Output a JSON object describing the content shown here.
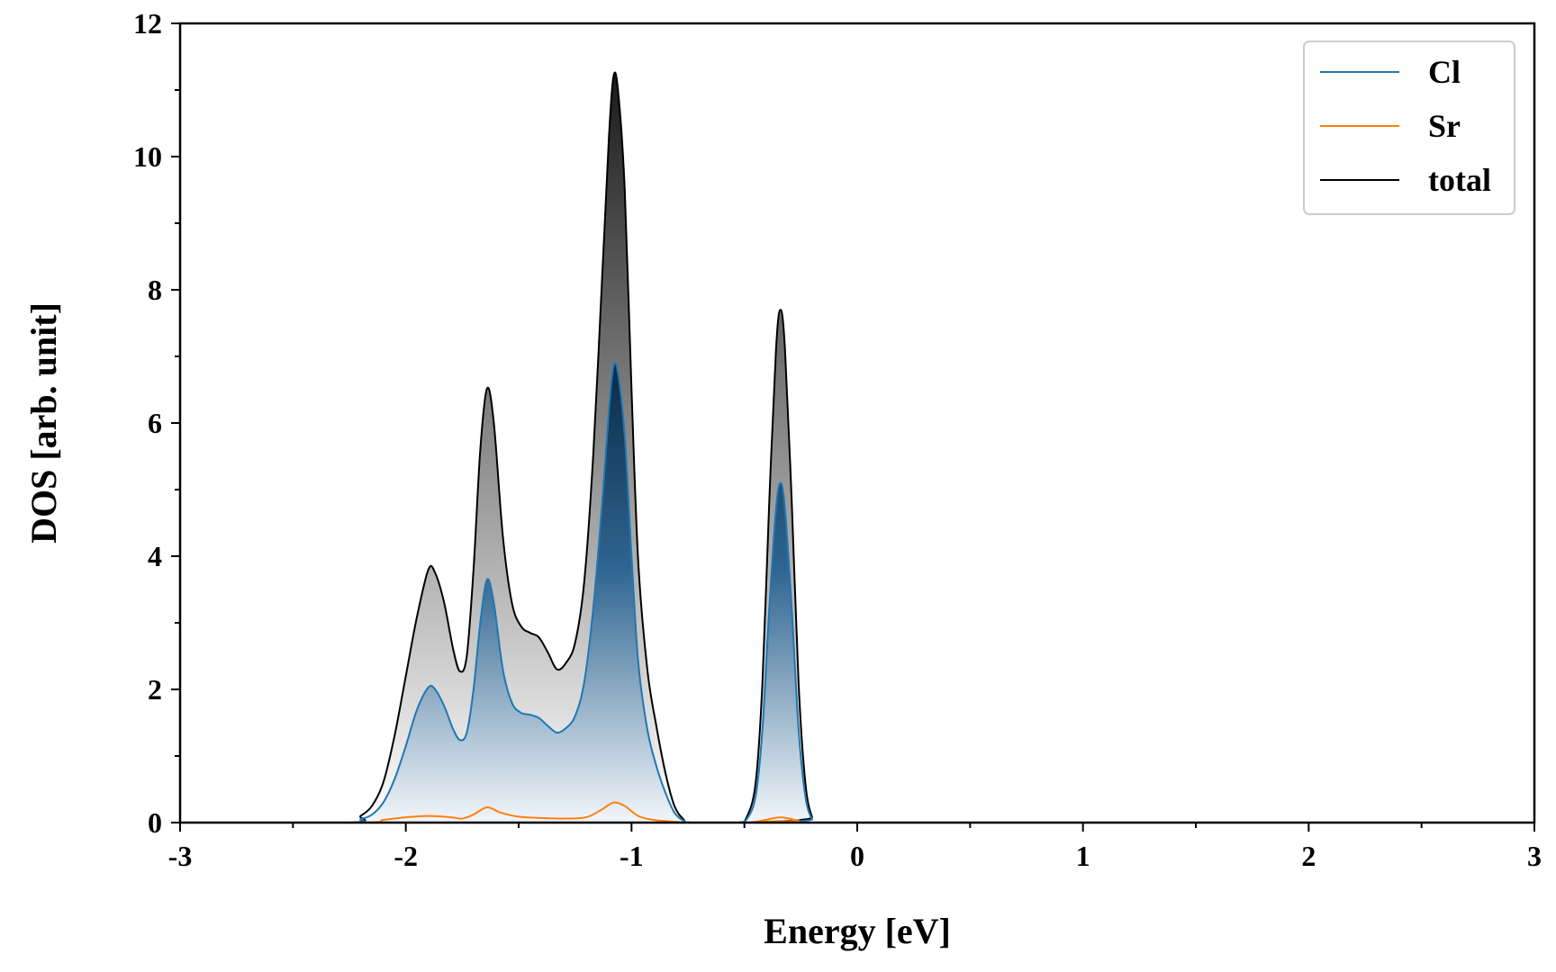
{
  "chart_data": {
    "type": "area",
    "xlabel": "Energy [eV]",
    "ylabel": "DOS [arb. unit]",
    "xlim": [
      -3,
      3
    ],
    "ylim": [
      0,
      12
    ],
    "x_ticks": [
      -3,
      -2,
      -1,
      0,
      1,
      2,
      3
    ],
    "y_ticks": [
      0,
      2,
      4,
      6,
      8,
      10,
      12
    ],
    "grid": false,
    "legend_position": "top-right",
    "series": [
      {
        "name": "Cl",
        "color": "#1f77b4",
        "fill": "gradient-blue",
        "points": [
          [
            -3.0,
            0
          ],
          [
            -2.25,
            0
          ],
          [
            -2.2,
            0.05
          ],
          [
            -2.15,
            0.12
          ],
          [
            -2.1,
            0.3
          ],
          [
            -2.05,
            0.65
          ],
          [
            -2.0,
            1.15
          ],
          [
            -1.95,
            1.7
          ],
          [
            -1.9,
            2.03
          ],
          [
            -1.87,
            2.0
          ],
          [
            -1.83,
            1.75
          ],
          [
            -1.79,
            1.4
          ],
          [
            -1.76,
            1.24
          ],
          [
            -1.73,
            1.35
          ],
          [
            -1.7,
            2.0
          ],
          [
            -1.67,
            3.0
          ],
          [
            -1.64,
            3.65
          ],
          [
            -1.61,
            3.3
          ],
          [
            -1.57,
            2.3
          ],
          [
            -1.53,
            1.8
          ],
          [
            -1.49,
            1.65
          ],
          [
            -1.45,
            1.62
          ],
          [
            -1.41,
            1.57
          ],
          [
            -1.37,
            1.45
          ],
          [
            -1.33,
            1.35
          ],
          [
            -1.29,
            1.42
          ],
          [
            -1.25,
            1.6
          ],
          [
            -1.21,
            2.1
          ],
          [
            -1.17,
            3.2
          ],
          [
            -1.13,
            4.8
          ],
          [
            -1.1,
            6.2
          ],
          [
            -1.08,
            6.85
          ],
          [
            -1.06,
            6.75
          ],
          [
            -1.03,
            5.8
          ],
          [
            -1.0,
            4.0
          ],
          [
            -0.97,
            2.4
          ],
          [
            -0.93,
            1.4
          ],
          [
            -0.89,
            0.85
          ],
          [
            -0.85,
            0.45
          ],
          [
            -0.81,
            0.15
          ],
          [
            -0.77,
            0.03
          ],
          [
            -0.74,
            0
          ],
          [
            -0.53,
            0
          ],
          [
            -0.49,
            0.05
          ],
          [
            -0.45,
            0.4
          ],
          [
            -0.42,
            1.4
          ],
          [
            -0.39,
            3.2
          ],
          [
            -0.36,
            4.7
          ],
          [
            -0.34,
            5.1
          ],
          [
            -0.32,
            4.7
          ],
          [
            -0.29,
            3.2
          ],
          [
            -0.26,
            1.4
          ],
          [
            -0.23,
            0.4
          ],
          [
            -0.2,
            0.05
          ],
          [
            -0.17,
            0
          ],
          [
            3.0,
            0
          ]
        ]
      },
      {
        "name": "Sr",
        "color": "#ff7f0e",
        "fill": "none",
        "points": [
          [
            -3.0,
            0
          ],
          [
            -2.2,
            0
          ],
          [
            -2.1,
            0.04
          ],
          [
            -2.0,
            0.08
          ],
          [
            -1.9,
            0.1
          ],
          [
            -1.8,
            0.08
          ],
          [
            -1.75,
            0.06
          ],
          [
            -1.7,
            0.12
          ],
          [
            -1.64,
            0.23
          ],
          [
            -1.58,
            0.15
          ],
          [
            -1.5,
            0.09
          ],
          [
            -1.4,
            0.07
          ],
          [
            -1.3,
            0.06
          ],
          [
            -1.2,
            0.08
          ],
          [
            -1.13,
            0.2
          ],
          [
            -1.08,
            0.3
          ],
          [
            -1.03,
            0.25
          ],
          [
            -0.97,
            0.1
          ],
          [
            -0.9,
            0.04
          ],
          [
            -0.8,
            0.01
          ],
          [
            -0.74,
            0
          ],
          [
            -0.5,
            0
          ],
          [
            -0.42,
            0.03
          ],
          [
            -0.34,
            0.08
          ],
          [
            -0.26,
            0.03
          ],
          [
            -0.18,
            0
          ],
          [
            3.0,
            0
          ]
        ]
      },
      {
        "name": "total",
        "color": "#000000",
        "fill": "gradient-gray",
        "points": [
          [
            -3.0,
            0
          ],
          [
            -2.25,
            0
          ],
          [
            -2.2,
            0.1
          ],
          [
            -2.15,
            0.25
          ],
          [
            -2.1,
            0.6
          ],
          [
            -2.05,
            1.3
          ],
          [
            -2.0,
            2.2
          ],
          [
            -1.95,
            3.1
          ],
          [
            -1.9,
            3.8
          ],
          [
            -1.87,
            3.75
          ],
          [
            -1.83,
            3.3
          ],
          [
            -1.79,
            2.6
          ],
          [
            -1.76,
            2.27
          ],
          [
            -1.73,
            2.5
          ],
          [
            -1.7,
            3.8
          ],
          [
            -1.67,
            5.6
          ],
          [
            -1.64,
            6.52
          ],
          [
            -1.61,
            6.0
          ],
          [
            -1.57,
            4.3
          ],
          [
            -1.53,
            3.3
          ],
          [
            -1.49,
            2.95
          ],
          [
            -1.45,
            2.85
          ],
          [
            -1.41,
            2.78
          ],
          [
            -1.37,
            2.55
          ],
          [
            -1.33,
            2.3
          ],
          [
            -1.29,
            2.4
          ],
          [
            -1.25,
            2.7
          ],
          [
            -1.21,
            3.6
          ],
          [
            -1.17,
            5.5
          ],
          [
            -1.13,
            8.2
          ],
          [
            -1.1,
            10.3
          ],
          [
            -1.08,
            11.2
          ],
          [
            -1.06,
            11.0
          ],
          [
            -1.03,
            9.5
          ],
          [
            -1.0,
            6.5
          ],
          [
            -0.97,
            3.9
          ],
          [
            -0.93,
            2.3
          ],
          [
            -0.89,
            1.45
          ],
          [
            -0.85,
            0.75
          ],
          [
            -0.81,
            0.25
          ],
          [
            -0.77,
            0.05
          ],
          [
            -0.74,
            0
          ],
          [
            -0.53,
            0
          ],
          [
            -0.49,
            0.08
          ],
          [
            -0.45,
            0.6
          ],
          [
            -0.42,
            2.1
          ],
          [
            -0.39,
            4.8
          ],
          [
            -0.36,
            7.1
          ],
          [
            -0.34,
            7.7
          ],
          [
            -0.32,
            7.1
          ],
          [
            -0.29,
            4.8
          ],
          [
            -0.26,
            2.1
          ],
          [
            -0.23,
            0.6
          ],
          [
            -0.2,
            0.08
          ],
          [
            -0.17,
            0
          ],
          [
            3.0,
            0
          ]
        ]
      }
    ]
  }
}
